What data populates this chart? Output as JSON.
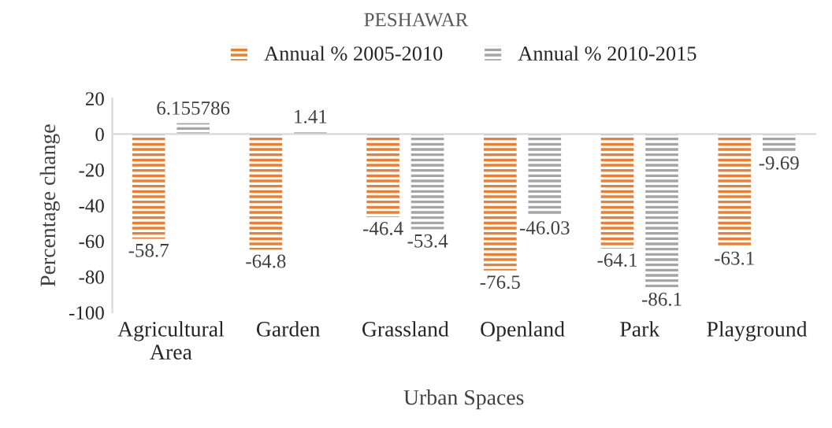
{
  "chart_data": {
    "type": "bar",
    "title": "PESHAWAR",
    "xlabel": "Urban Spaces",
    "ylabel": "Percentage change",
    "categories": [
      "Agricultural Area",
      "Garden",
      "Grassland",
      "Openland",
      "Park",
      "Playground"
    ],
    "series": [
      {
        "name": "Annual % 2005-2010",
        "color": "#ed7d31",
        "values": [
          -58.7,
          -64.8,
          -46.4,
          -76.5,
          -64.1,
          -63.1
        ],
        "value_labels": [
          "-58.7",
          "-64.8",
          "-46.4",
          "-76.5",
          "-64.1",
          "-63.1"
        ]
      },
      {
        "name": "Annual % 2010-2015",
        "color": "#a5a5a5",
        "values": [
          6.155786,
          1.41,
          -53.4,
          -46.03,
          -86.1,
          -9.69
        ],
        "value_labels": [
          "6.155786",
          "1.41",
          "-53.4",
          "-46.03",
          "-86.1",
          "-9.69"
        ]
      }
    ],
    "ylim": [
      -100,
      20
    ],
    "yticks": [
      -100,
      -80,
      -60,
      -40,
      -20,
      0,
      20
    ],
    "legend": "top"
  }
}
